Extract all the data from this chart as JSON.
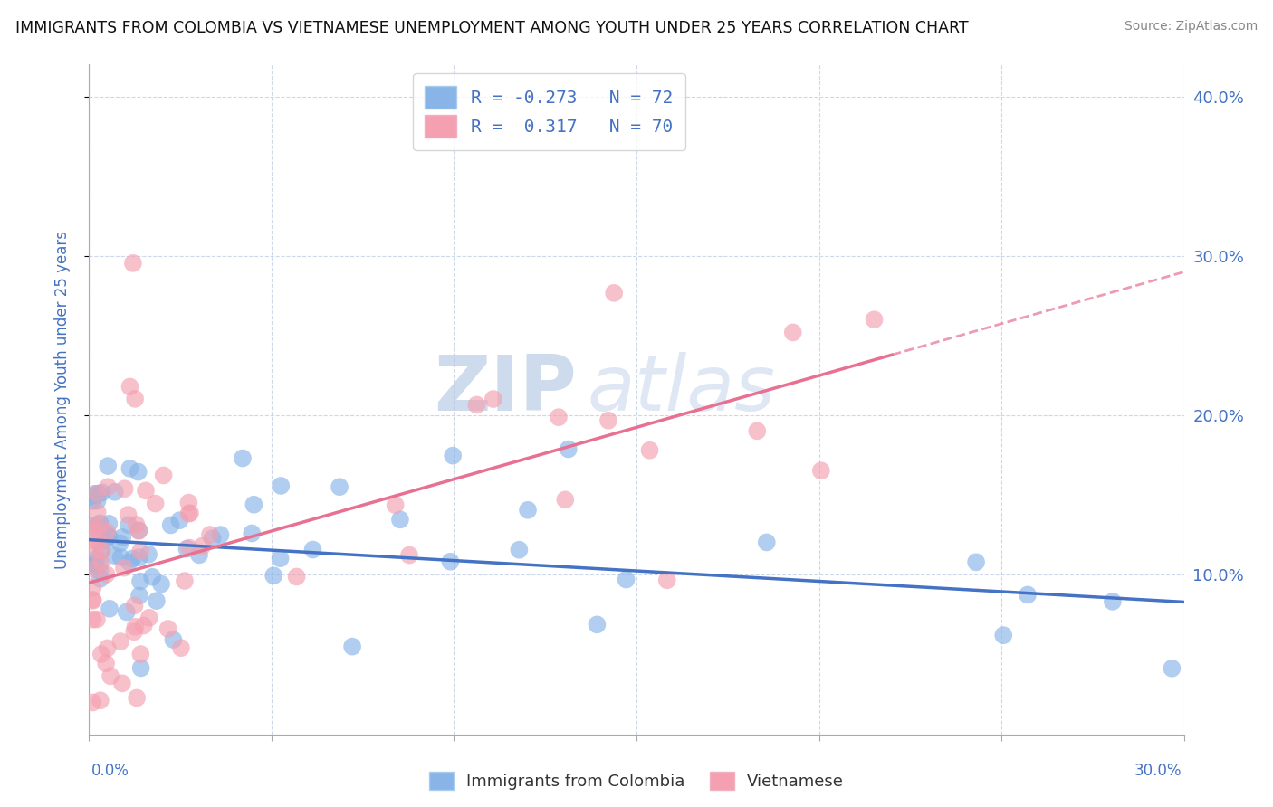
{
  "title": "IMMIGRANTS FROM COLOMBIA VS VIETNAMESE UNEMPLOYMENT AMONG YOUTH UNDER 25 YEARS CORRELATION CHART",
  "source": "Source: ZipAtlas.com",
  "ylabel": "Unemployment Among Youth under 25 years",
  "xlabel_colombia": "Immigrants from Colombia",
  "xlabel_vietnamese": "Vietnamese",
  "watermark_zip": "ZIP",
  "watermark_atlas": "atlas",
  "R_colombia": -0.273,
  "N_colombia": 72,
  "R_vietnamese": 0.317,
  "N_vietnamese": 70,
  "xlim": [
    0.0,
    0.3
  ],
  "ylim": [
    0.0,
    0.42
  ],
  "yticks": [
    0.1,
    0.2,
    0.3,
    0.4
  ],
  "color_colombia": "#88b4e8",
  "color_colombia_line": "#4472c4",
  "color_vietnamese": "#f4a0b0",
  "color_vietnamese_line": "#e87090",
  "color_text": "#4472c4",
  "background_color": "#ffffff",
  "grid_color": "#c8d4e8"
}
